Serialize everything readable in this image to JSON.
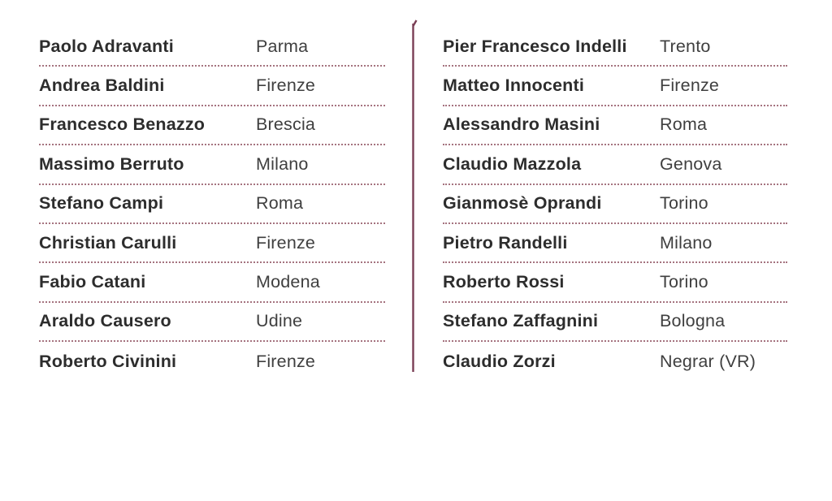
{
  "colors": {
    "background": "#ffffff",
    "name_text": "#2d2d2d",
    "city_text": "#3f3f3f",
    "dotted_separator": "#a5737f",
    "divider_line": "#7a3e55"
  },
  "columns": [
    {
      "id": "left",
      "entries": [
        {
          "name": "Paolo Adravanti",
          "city": "Parma"
        },
        {
          "name": "Andrea Baldini",
          "city": "Firenze"
        },
        {
          "name": "Francesco Benazzo",
          "city": "Brescia"
        },
        {
          "name": "Massimo Berruto",
          "city": "Milano"
        },
        {
          "name": "Stefano Campi",
          "city": "Roma"
        },
        {
          "name": "Christian Carulli",
          "city": "Firenze"
        },
        {
          "name": "Fabio Catani",
          "city": "Modena"
        },
        {
          "name": "Araldo Causero",
          "city": "Udine"
        },
        {
          "name": "Roberto Civinini",
          "city": "Firenze"
        }
      ]
    },
    {
      "id": "right",
      "entries": [
        {
          "name": "Pier Francesco Indelli",
          "city": "Trento"
        },
        {
          "name": "Matteo Innocenti",
          "city": "Firenze"
        },
        {
          "name": "Alessandro Masini",
          "city": "Roma"
        },
        {
          "name": "Claudio Mazzola",
          "city": "Genova"
        },
        {
          "name": "Gianmosè Oprandi",
          "city": "Torino"
        },
        {
          "name": "Pietro Randelli",
          "city": "Milano"
        },
        {
          "name": "Roberto Rossi",
          "city": "Torino"
        },
        {
          "name": "Stefano Zaffagnini",
          "city": "Bologna"
        },
        {
          "name": "Claudio Zorzi",
          "city": "Negrar (VR)"
        }
      ]
    }
  ]
}
